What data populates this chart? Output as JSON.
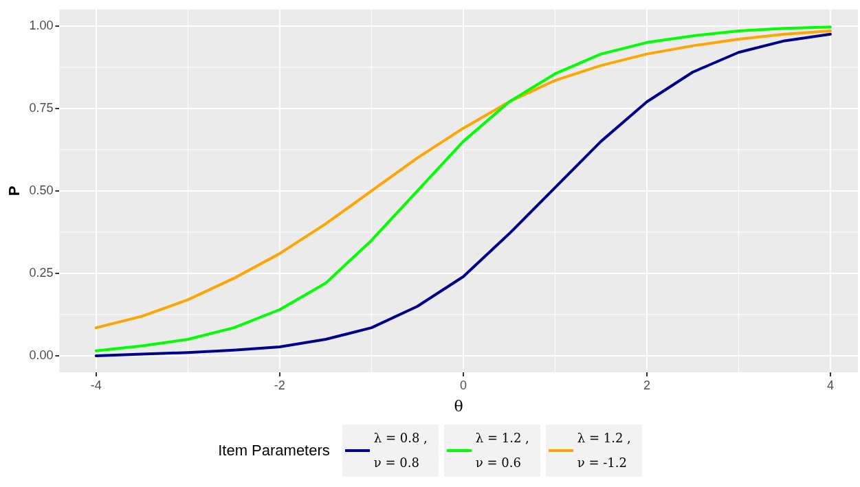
{
  "chart_data": {
    "type": "line",
    "xlabel": "θ",
    "ylabel": "P",
    "legend_title": "Item Parameters",
    "x": [
      -4,
      -3.5,
      -3,
      -2.5,
      -2,
      -1.5,
      -1,
      -0.5,
      0,
      0.5,
      1,
      1.5,
      2,
      2.5,
      3,
      3.5,
      4
    ],
    "series": [
      {
        "name": "λ = 0.8 , ν = 0.8",
        "color": "#00008b",
        "values": [
          0.0,
          0.005,
          0.01,
          0.017,
          0.027,
          0.05,
          0.085,
          0.15,
          0.24,
          0.37,
          0.51,
          0.65,
          0.77,
          0.86,
          0.92,
          0.955,
          0.975
        ]
      },
      {
        "name": "λ = 1.2 , ν = 0.6",
        "color": "#00ff00",
        "values": [
          0.015,
          0.03,
          0.05,
          0.085,
          0.14,
          0.22,
          0.35,
          0.5,
          0.65,
          0.77,
          0.855,
          0.915,
          0.95,
          0.97,
          0.985,
          0.993,
          0.997
        ]
      },
      {
        "name": "λ = 1.2 , ν = -1.2",
        "color": "#ffa500",
        "values": [
          0.085,
          0.12,
          0.17,
          0.235,
          0.31,
          0.4,
          0.5,
          0.6,
          0.69,
          0.77,
          0.835,
          0.88,
          0.915,
          0.94,
          0.96,
          0.975,
          0.985
        ]
      }
    ],
    "xlim": [
      -4.4,
      4.3
    ],
    "ylim": [
      -0.05,
      1.05
    ],
    "xticks": [
      -4,
      -2,
      0,
      2,
      4
    ],
    "yticks": [
      {
        "value": 0,
        "label": "0.00"
      },
      {
        "value": 0.25,
        "label": "0.25"
      },
      {
        "value": 0.5,
        "label": "0.50"
      },
      {
        "value": 0.75,
        "label": "0.75"
      },
      {
        "value": 1,
        "label": "1.00"
      }
    ],
    "grid": true,
    "legend": "bottom",
    "line_style": "solid",
    "marker": "none"
  }
}
